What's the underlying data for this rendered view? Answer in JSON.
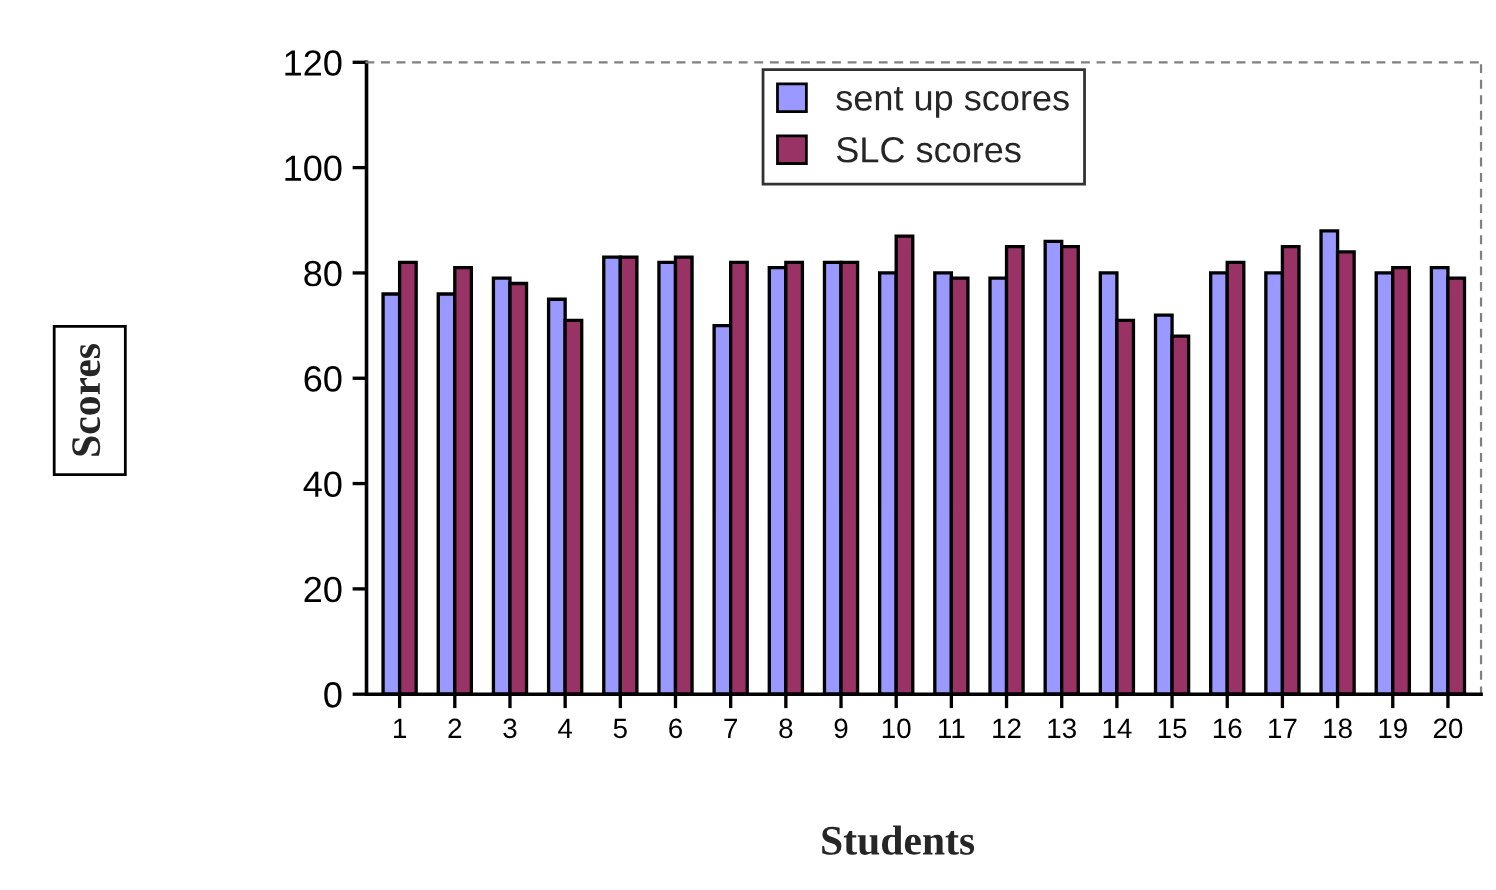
{
  "chart_data": {
    "type": "bar",
    "xlabel": "Students",
    "ylabel": "Scores",
    "categories": [
      "1",
      "2",
      "3",
      "4",
      "5",
      "6",
      "7",
      "8",
      "9",
      "10",
      "11",
      "12",
      "13",
      "14",
      "15",
      "16",
      "17",
      "18",
      "19",
      "20"
    ],
    "series": [
      {
        "name": "sent up scores",
        "color": "#9999ff",
        "values": [
          76,
          76,
          79,
          75,
          83,
          82,
          70,
          81,
          82,
          80,
          80,
          79,
          86,
          80,
          72,
          80,
          80,
          88,
          80,
          81
        ]
      },
      {
        "name": "SLC scores",
        "color": "#993366",
        "values": [
          82,
          81,
          78,
          71,
          83,
          83,
          82,
          82,
          82,
          87,
          79,
          85,
          85,
          71,
          68,
          82,
          85,
          84,
          81,
          79
        ]
      }
    ],
    "ylim": [
      0,
      120
    ],
    "yticks": [
      0,
      20,
      40,
      60,
      80,
      100,
      120
    ],
    "legend": "top"
  }
}
